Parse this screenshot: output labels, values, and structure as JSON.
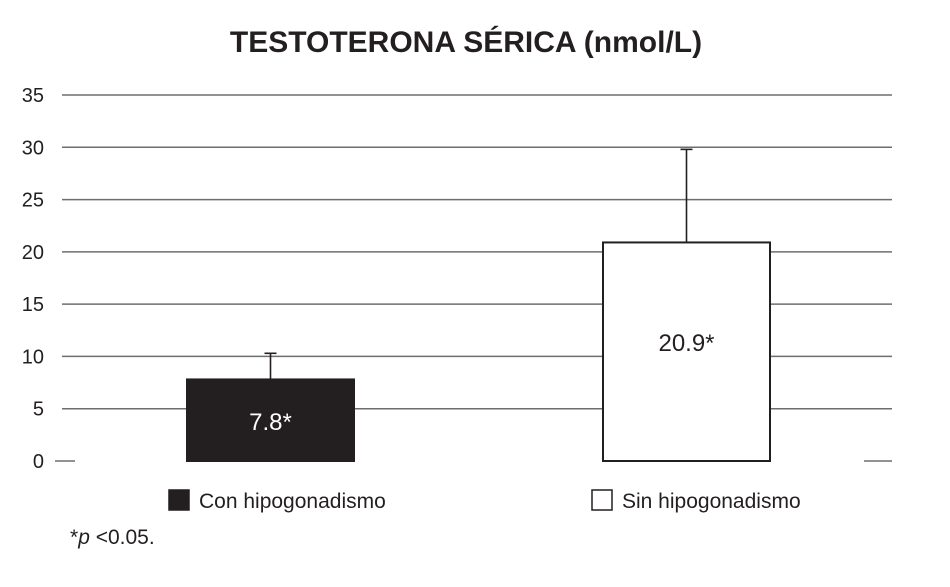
{
  "chart_data": {
    "type": "bar",
    "title": "TESTOTERONA SÉRICA (nmol/L)",
    "xlabel": "",
    "ylabel": "",
    "ylim": [
      0,
      35
    ],
    "yticks": [
      0,
      5,
      10,
      15,
      20,
      25,
      30,
      35
    ],
    "grid": true,
    "categories": [
      "Con hipogonadismo",
      "Sin hipogonadismo"
    ],
    "values": [
      7.8,
      20.9
    ],
    "error_upper": [
      10.3,
      29.8
    ],
    "data_labels": [
      "7.8*",
      "20.9*"
    ],
    "colors": [
      "#231f20",
      "#ffffff"
    ],
    "label_colors": [
      "#ffffff",
      "#231f20"
    ],
    "legend": {
      "placement": "bottom",
      "entries": [
        "Con hipogonadismo",
        "Sin hipogonadismo"
      ]
    }
  },
  "footnote": {
    "prefix": "*",
    "italic": "p",
    "rest": " <0.05."
  }
}
